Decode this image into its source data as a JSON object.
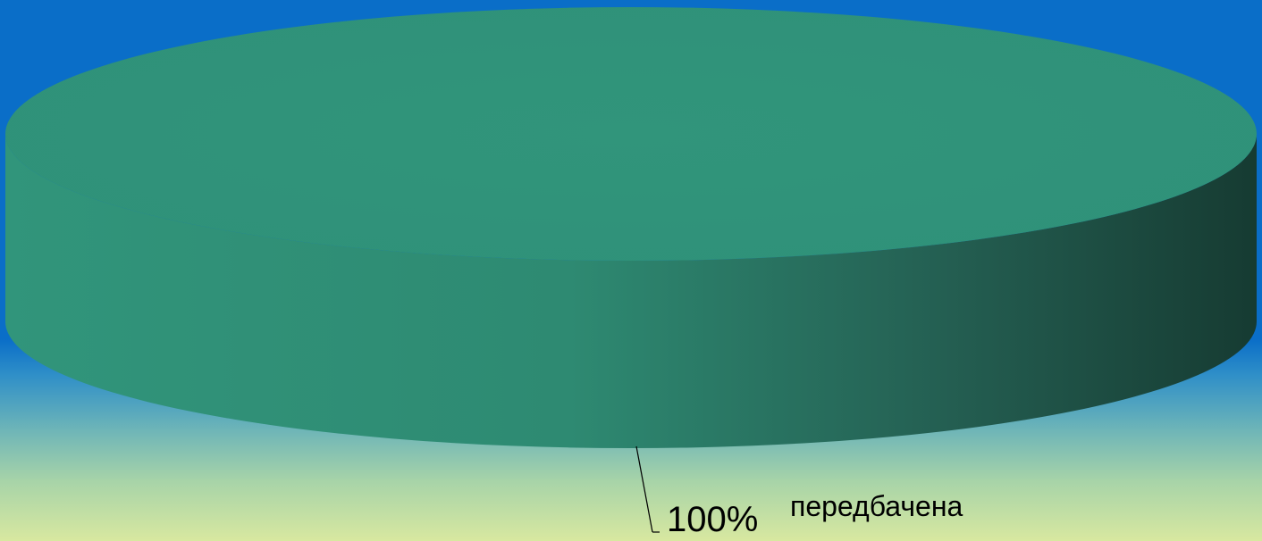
{
  "chart_data": {
    "type": "pie",
    "style": "3d",
    "slices": [
      {
        "category": "передбачена",
        "value": 100,
        "value_label": "100%",
        "color_top": "#31957b",
        "color_side_light": "#2e8a72",
        "color_side_dark": "#163b32"
      }
    ],
    "legend": "none",
    "leader_lines": true
  },
  "colors": {
    "background_top": "#0a6ec8",
    "background_bottom": "#d8e8a0"
  }
}
